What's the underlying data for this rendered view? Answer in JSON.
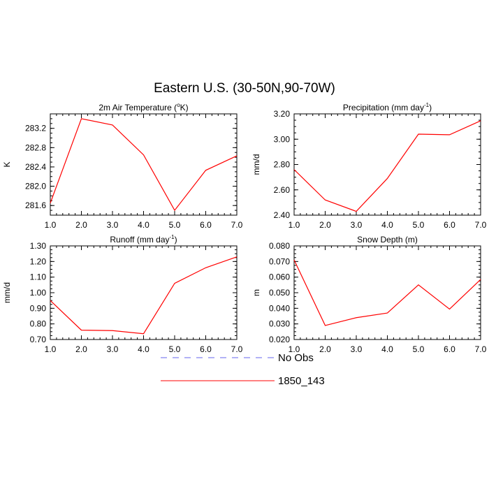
{
  "figure": {
    "title": "Eastern U.S. (30-50N,90-70W)",
    "legend": [
      {
        "label": "No Obs",
        "color": "#6666ee",
        "dash": true
      },
      {
        "label": "1850_143",
        "color": "#ff0000",
        "dash": false
      }
    ]
  },
  "chart_data": [
    {
      "type": "line",
      "title": "2m Air Temperature (°K)",
      "title_parts": {
        "pre": "2m Air Temperature (",
        "sup": "o",
        "post": "K)"
      },
      "ylabel": "K",
      "x": [
        1,
        2,
        3,
        4,
        5,
        6,
        7
      ],
      "xlim": [
        1,
        7
      ],
      "xticks": [
        "1.0",
        "2.0",
        "3.0",
        "4.0",
        "5.0",
        "6.0",
        "7.0"
      ],
      "ylim": [
        281.4,
        283.5
      ],
      "yticks": [
        281.6,
        282.0,
        282.4,
        282.8,
        283.2
      ],
      "yticklabels": [
        "281.6",
        "282.0",
        "282.4",
        "282.8",
        "283.2"
      ],
      "series": [
        {
          "name": "1850_143",
          "color": "#ff0000",
          "values": [
            281.65,
            283.4,
            283.27,
            282.65,
            281.5,
            282.33,
            282.63
          ]
        }
      ]
    },
    {
      "type": "line",
      "title": "Precipitation (mm day-1)",
      "title_parts": {
        "pre": "Precipitation (mm day",
        "sup": "-1",
        "post": ")"
      },
      "ylabel": "mm/d",
      "x": [
        1,
        2,
        3,
        4,
        5,
        6,
        7
      ],
      "xlim": [
        1,
        7
      ],
      "xticks": [
        "1.0",
        "2.0",
        "3.0",
        "4.0",
        "5.0",
        "6.0",
        "7.0"
      ],
      "ylim": [
        2.4,
        3.2
      ],
      "yticks": [
        2.4,
        2.6,
        2.8,
        3.0,
        3.2
      ],
      "yticklabels": [
        "2.40",
        "2.60",
        "2.80",
        "3.00",
        "3.20"
      ],
      "series": [
        {
          "name": "1850_143",
          "color": "#ff0000",
          "values": [
            2.76,
            2.52,
            2.43,
            2.69,
            3.04,
            3.035,
            3.145
          ]
        }
      ]
    },
    {
      "type": "line",
      "title": "Runoff (mm day-1)",
      "title_parts": {
        "pre": "Runoff (mm day",
        "sup": "-1",
        "post": ")"
      },
      "ylabel": "mm/d",
      "x": [
        1,
        2,
        3,
        4,
        5,
        6,
        7
      ],
      "xlim": [
        1,
        7
      ],
      "xticks": [
        "1.0",
        "2.0",
        "3.0",
        "4.0",
        "5.0",
        "6.0",
        "7.0"
      ],
      "ylim": [
        0.7,
        1.3
      ],
      "yticks": [
        0.7,
        0.8,
        0.9,
        1.0,
        1.1,
        1.2,
        1.3
      ],
      "yticklabels": [
        "0.70",
        "0.80",
        "0.90",
        "1.00",
        "1.10",
        "1.20",
        "1.30"
      ],
      "series": [
        {
          "name": "1850_143",
          "color": "#ff0000",
          "values": [
            0.95,
            0.76,
            0.757,
            0.737,
            1.06,
            1.16,
            1.23
          ]
        }
      ]
    },
    {
      "type": "line",
      "title": "Snow Depth (m)",
      "title_parts": {
        "pre": "Snow Depth (m)",
        "sup": "",
        "post": ""
      },
      "ylabel": "m",
      "x": [
        1,
        2,
        3,
        4,
        5,
        6,
        7
      ],
      "xlim": [
        1,
        7
      ],
      "xticks": [
        "1.0",
        "2.0",
        "3.0",
        "4.0",
        "5.0",
        "6.0",
        "7.0"
      ],
      "ylim": [
        0.02,
        0.08
      ],
      "yticks": [
        0.02,
        0.03,
        0.04,
        0.05,
        0.06,
        0.07,
        0.08
      ],
      "yticklabels": [
        "0.020",
        "0.030",
        "0.040",
        "0.050",
        "0.060",
        "0.070",
        "0.080"
      ],
      "series": [
        {
          "name": "1850_143",
          "color": "#ff0000",
          "values": [
            0.071,
            0.029,
            0.034,
            0.037,
            0.055,
            0.0395,
            0.0585
          ]
        }
      ]
    }
  ]
}
